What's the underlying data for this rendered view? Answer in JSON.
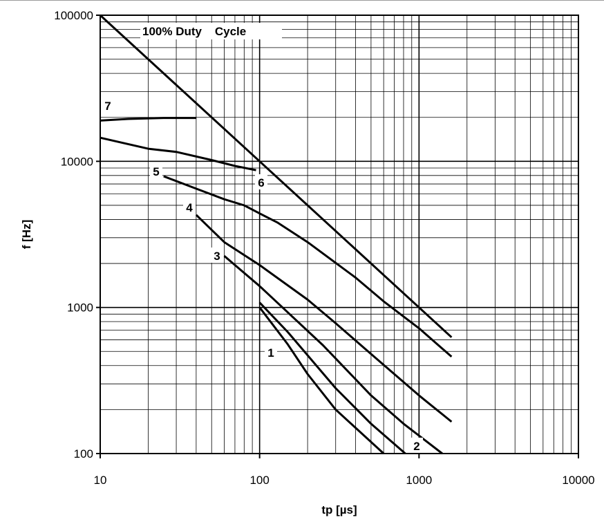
{
  "chart_data": {
    "type": "line",
    "title": "",
    "xlabel": "tp [µs]",
    "ylabel": "f [Hz]",
    "xscale": "log",
    "yscale": "log",
    "xlim": [
      10,
      10000
    ],
    "ylim": [
      100,
      100000
    ],
    "grid": true,
    "xticks": [
      "10",
      "100",
      "1000",
      "10000"
    ],
    "yticks": [
      "100",
      "1000",
      "10000",
      "100000"
    ],
    "annotation": "100% Duty    Cycle",
    "series": [
      {
        "name": "",
        "x": [
          10,
          1600
        ],
        "y": [
          100000,
          625
        ]
      },
      {
        "name": "7",
        "x": [
          10,
          15,
          25,
          40
        ],
        "y": [
          19000,
          19500,
          19800,
          19800
        ]
      },
      {
        "name": "6",
        "x": [
          10,
          20,
          30,
          50,
          70,
          95
        ],
        "y": [
          14500,
          12200,
          11600,
          10200,
          9300,
          8700
        ]
      },
      {
        "name": "5",
        "x": [
          25,
          40,
          60,
          80,
          100,
          130,
          200,
          400,
          600,
          1000,
          1600
        ],
        "y": [
          7900,
          6500,
          5500,
          5000,
          4400,
          3800,
          2800,
          1600,
          1100,
          720,
          460
        ]
      },
      {
        "name": "4",
        "x": [
          40,
          60,
          100,
          200,
          300,
          500,
          1000,
          1600
        ],
        "y": [
          4300,
          2800,
          1950,
          1130,
          780,
          480,
          250,
          165
        ]
      },
      {
        "name": "3",
        "x": [
          60,
          100,
          250,
          500,
          800,
          1400
        ],
        "y": [
          2250,
          1400,
          550,
          250,
          160,
          100
        ]
      },
      {
        "name": "2",
        "x": [
          100,
          150,
          300,
          500,
          820
        ],
        "y": [
          1080,
          680,
          280,
          160,
          100
        ]
      },
      {
        "name": "1",
        "x": [
          100,
          150,
          200,
          300,
          600
        ],
        "y": [
          1000,
          560,
          350,
          200,
          100
        ]
      }
    ]
  }
}
